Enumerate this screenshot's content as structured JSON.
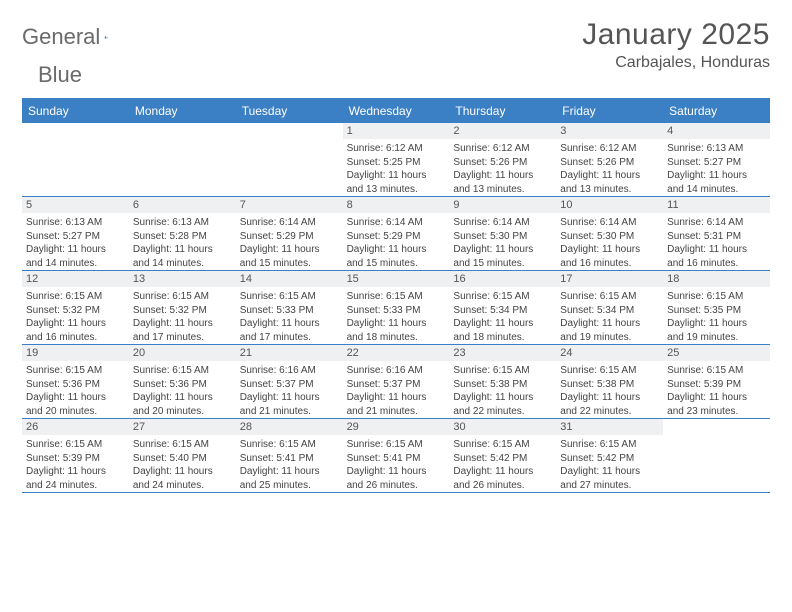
{
  "logo": {
    "word1": "General",
    "word2": "Blue"
  },
  "title": "January 2025",
  "location": "Carbajales, Honduras",
  "colors": {
    "accent": "#3b7fc4",
    "header_text": "#555555",
    "daynum_bg": "#eef0f2",
    "body_text": "#444444",
    "page_bg": "#ffffff"
  },
  "weekdays": [
    "Sunday",
    "Monday",
    "Tuesday",
    "Wednesday",
    "Thursday",
    "Friday",
    "Saturday"
  ],
  "weeks": [
    [
      {
        "num": "",
        "sunrise": "",
        "sunset": "",
        "daylight": ""
      },
      {
        "num": "",
        "sunrise": "",
        "sunset": "",
        "daylight": ""
      },
      {
        "num": "",
        "sunrise": "",
        "sunset": "",
        "daylight": ""
      },
      {
        "num": "1",
        "sunrise": "Sunrise: 6:12 AM",
        "sunset": "Sunset: 5:25 PM",
        "daylight": "Daylight: 11 hours and 13 minutes."
      },
      {
        "num": "2",
        "sunrise": "Sunrise: 6:12 AM",
        "sunset": "Sunset: 5:26 PM",
        "daylight": "Daylight: 11 hours and 13 minutes."
      },
      {
        "num": "3",
        "sunrise": "Sunrise: 6:12 AM",
        "sunset": "Sunset: 5:26 PM",
        "daylight": "Daylight: 11 hours and 13 minutes."
      },
      {
        "num": "4",
        "sunrise": "Sunrise: 6:13 AM",
        "sunset": "Sunset: 5:27 PM",
        "daylight": "Daylight: 11 hours and 14 minutes."
      }
    ],
    [
      {
        "num": "5",
        "sunrise": "Sunrise: 6:13 AM",
        "sunset": "Sunset: 5:27 PM",
        "daylight": "Daylight: 11 hours and 14 minutes."
      },
      {
        "num": "6",
        "sunrise": "Sunrise: 6:13 AM",
        "sunset": "Sunset: 5:28 PM",
        "daylight": "Daylight: 11 hours and 14 minutes."
      },
      {
        "num": "7",
        "sunrise": "Sunrise: 6:14 AM",
        "sunset": "Sunset: 5:29 PM",
        "daylight": "Daylight: 11 hours and 15 minutes."
      },
      {
        "num": "8",
        "sunrise": "Sunrise: 6:14 AM",
        "sunset": "Sunset: 5:29 PM",
        "daylight": "Daylight: 11 hours and 15 minutes."
      },
      {
        "num": "9",
        "sunrise": "Sunrise: 6:14 AM",
        "sunset": "Sunset: 5:30 PM",
        "daylight": "Daylight: 11 hours and 15 minutes."
      },
      {
        "num": "10",
        "sunrise": "Sunrise: 6:14 AM",
        "sunset": "Sunset: 5:30 PM",
        "daylight": "Daylight: 11 hours and 16 minutes."
      },
      {
        "num": "11",
        "sunrise": "Sunrise: 6:14 AM",
        "sunset": "Sunset: 5:31 PM",
        "daylight": "Daylight: 11 hours and 16 minutes."
      }
    ],
    [
      {
        "num": "12",
        "sunrise": "Sunrise: 6:15 AM",
        "sunset": "Sunset: 5:32 PM",
        "daylight": "Daylight: 11 hours and 16 minutes."
      },
      {
        "num": "13",
        "sunrise": "Sunrise: 6:15 AM",
        "sunset": "Sunset: 5:32 PM",
        "daylight": "Daylight: 11 hours and 17 minutes."
      },
      {
        "num": "14",
        "sunrise": "Sunrise: 6:15 AM",
        "sunset": "Sunset: 5:33 PM",
        "daylight": "Daylight: 11 hours and 17 minutes."
      },
      {
        "num": "15",
        "sunrise": "Sunrise: 6:15 AM",
        "sunset": "Sunset: 5:33 PM",
        "daylight": "Daylight: 11 hours and 18 minutes."
      },
      {
        "num": "16",
        "sunrise": "Sunrise: 6:15 AM",
        "sunset": "Sunset: 5:34 PM",
        "daylight": "Daylight: 11 hours and 18 minutes."
      },
      {
        "num": "17",
        "sunrise": "Sunrise: 6:15 AM",
        "sunset": "Sunset: 5:34 PM",
        "daylight": "Daylight: 11 hours and 19 minutes."
      },
      {
        "num": "18",
        "sunrise": "Sunrise: 6:15 AM",
        "sunset": "Sunset: 5:35 PM",
        "daylight": "Daylight: 11 hours and 19 minutes."
      }
    ],
    [
      {
        "num": "19",
        "sunrise": "Sunrise: 6:15 AM",
        "sunset": "Sunset: 5:36 PM",
        "daylight": "Daylight: 11 hours and 20 minutes."
      },
      {
        "num": "20",
        "sunrise": "Sunrise: 6:15 AM",
        "sunset": "Sunset: 5:36 PM",
        "daylight": "Daylight: 11 hours and 20 minutes."
      },
      {
        "num": "21",
        "sunrise": "Sunrise: 6:16 AM",
        "sunset": "Sunset: 5:37 PM",
        "daylight": "Daylight: 11 hours and 21 minutes."
      },
      {
        "num": "22",
        "sunrise": "Sunrise: 6:16 AM",
        "sunset": "Sunset: 5:37 PM",
        "daylight": "Daylight: 11 hours and 21 minutes."
      },
      {
        "num": "23",
        "sunrise": "Sunrise: 6:15 AM",
        "sunset": "Sunset: 5:38 PM",
        "daylight": "Daylight: 11 hours and 22 minutes."
      },
      {
        "num": "24",
        "sunrise": "Sunrise: 6:15 AM",
        "sunset": "Sunset: 5:38 PM",
        "daylight": "Daylight: 11 hours and 22 minutes."
      },
      {
        "num": "25",
        "sunrise": "Sunrise: 6:15 AM",
        "sunset": "Sunset: 5:39 PM",
        "daylight": "Daylight: 11 hours and 23 minutes."
      }
    ],
    [
      {
        "num": "26",
        "sunrise": "Sunrise: 6:15 AM",
        "sunset": "Sunset: 5:39 PM",
        "daylight": "Daylight: 11 hours and 24 minutes."
      },
      {
        "num": "27",
        "sunrise": "Sunrise: 6:15 AM",
        "sunset": "Sunset: 5:40 PM",
        "daylight": "Daylight: 11 hours and 24 minutes."
      },
      {
        "num": "28",
        "sunrise": "Sunrise: 6:15 AM",
        "sunset": "Sunset: 5:41 PM",
        "daylight": "Daylight: 11 hours and 25 minutes."
      },
      {
        "num": "29",
        "sunrise": "Sunrise: 6:15 AM",
        "sunset": "Sunset: 5:41 PM",
        "daylight": "Daylight: 11 hours and 26 minutes."
      },
      {
        "num": "30",
        "sunrise": "Sunrise: 6:15 AM",
        "sunset": "Sunset: 5:42 PM",
        "daylight": "Daylight: 11 hours and 26 minutes."
      },
      {
        "num": "31",
        "sunrise": "Sunrise: 6:15 AM",
        "sunset": "Sunset: 5:42 PM",
        "daylight": "Daylight: 11 hours and 27 minutes."
      },
      {
        "num": "",
        "sunrise": "",
        "sunset": "",
        "daylight": ""
      }
    ]
  ]
}
